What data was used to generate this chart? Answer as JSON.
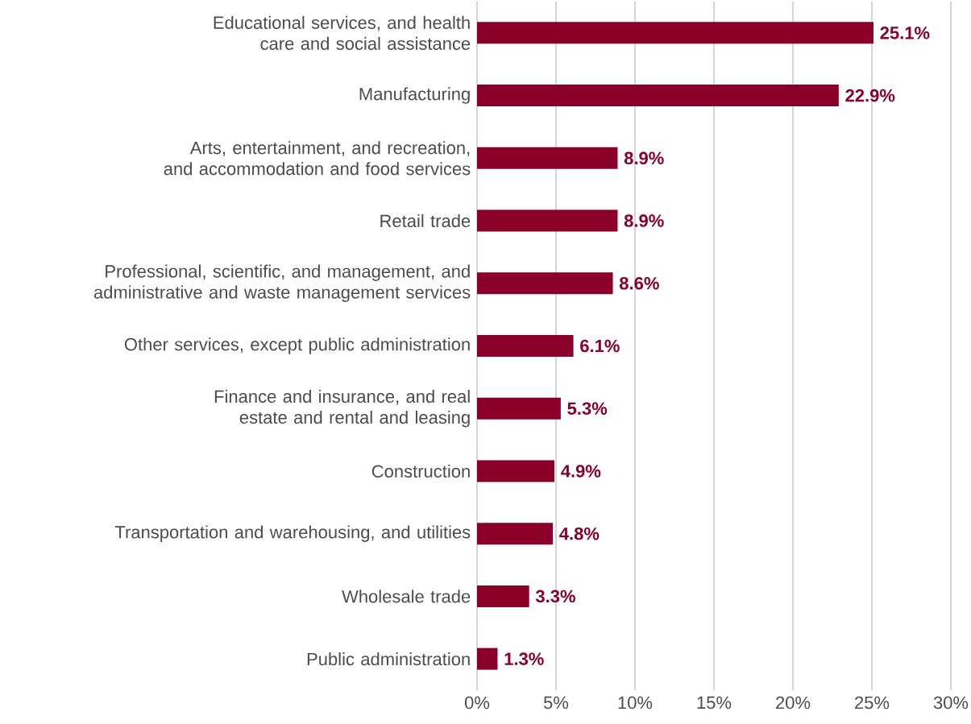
{
  "chart_data": {
    "type": "bar",
    "orientation": "horizontal",
    "categories": [
      "Educational services, and health care and social assistance",
      "Manufacturing",
      "Arts, entertainment, and recreation, and accommodation and food services",
      "Retail trade",
      "Professional, scientific, and management, and administrative and waste management services",
      "Other services, except public administration",
      "Finance and insurance, and real estate and rental and leasing",
      "Construction",
      "Transportation and warehousing, and utilities",
      "Wholesale trade",
      "Public administration"
    ],
    "values": [
      25.1,
      22.9,
      8.9,
      8.9,
      8.6,
      6.1,
      5.3,
      4.9,
      4.8,
      3.3,
      1.3
    ],
    "value_labels": [
      "25.1%",
      "22.9%",
      "8.9%",
      "8.9%",
      "8.6%",
      "6.1%",
      "5.3%",
      "4.9%",
      "4.8%",
      "3.3%",
      "1.3%"
    ],
    "color": "#8b0029",
    "xlim": [
      0,
      30
    ],
    "xticks": [
      {
        "value": 0,
        "label": "0%"
      },
      {
        "value": 5,
        "label": "5%"
      },
      {
        "value": 10,
        "label": "10%"
      },
      {
        "value": 15,
        "label": "15%"
      },
      {
        "value": 20,
        "label": "20%"
      },
      {
        "value": 25,
        "label": "25%"
      },
      {
        "value": 30,
        "label": "30%"
      }
    ],
    "grid": "x"
  }
}
